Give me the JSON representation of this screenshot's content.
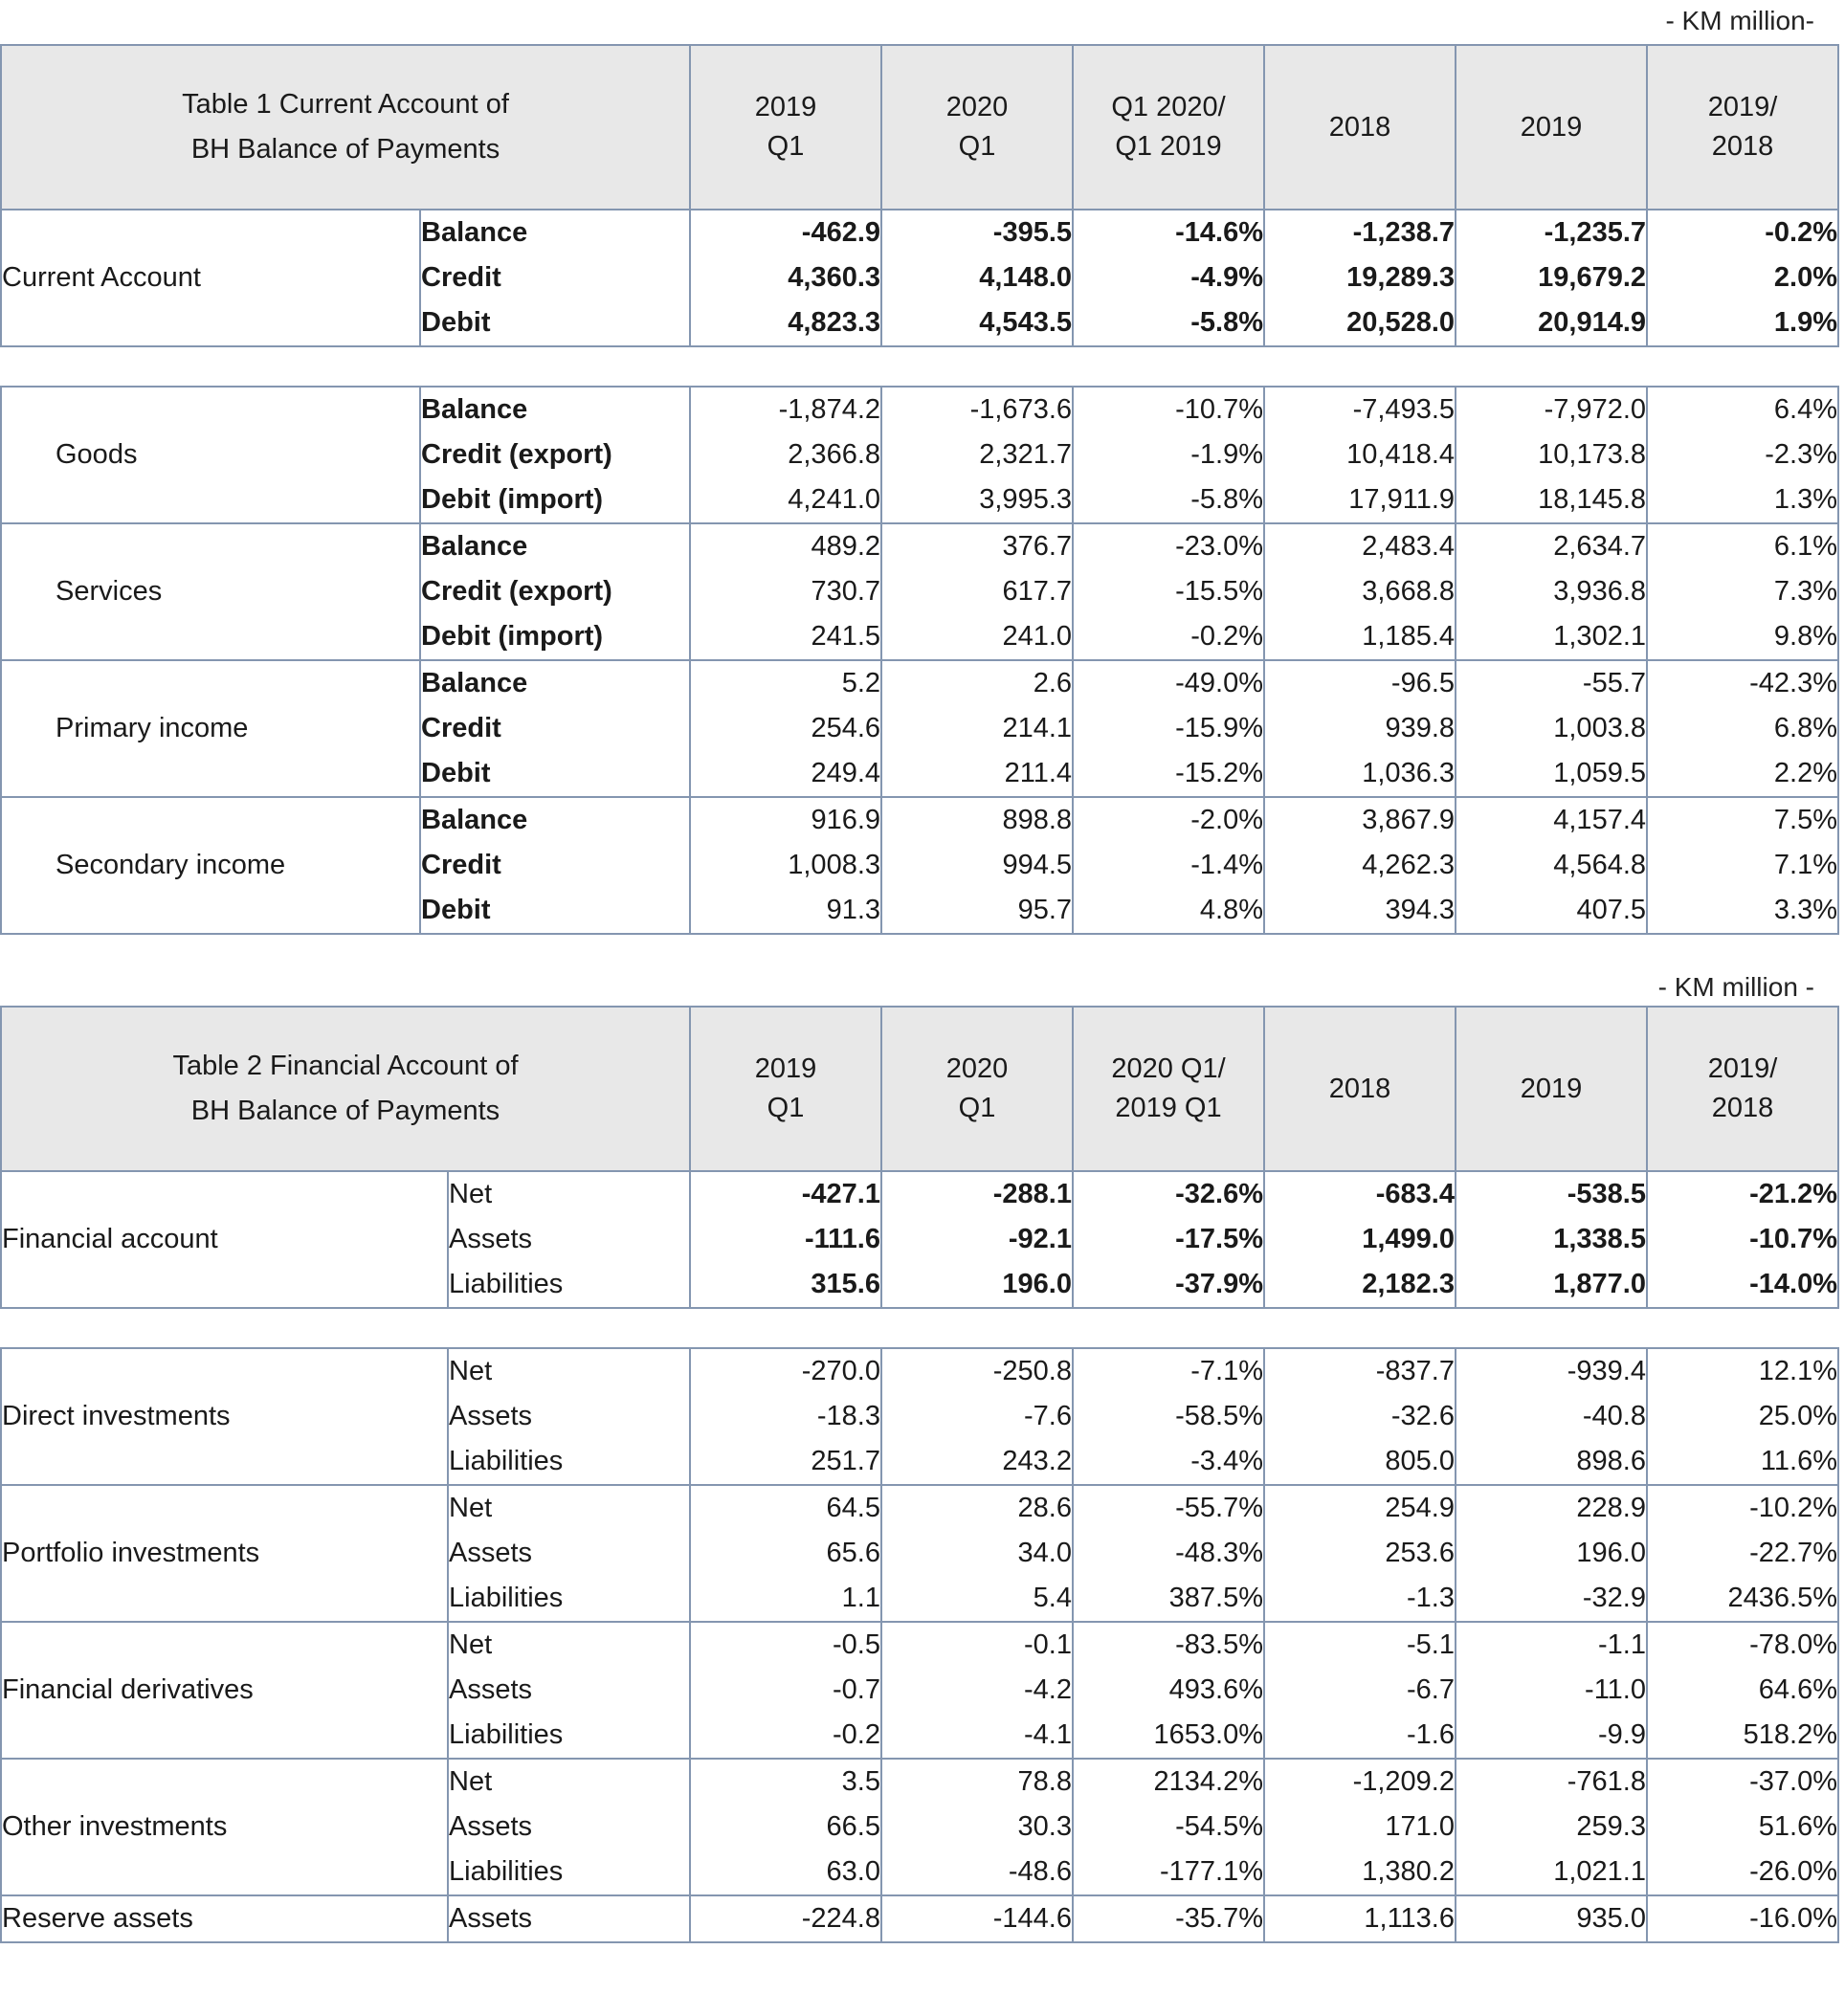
{
  "table1": {
    "unit": "- KM million-",
    "title": [
      "Table 1 Current Account of",
      "BH Balance of Payments"
    ],
    "columns": [
      [
        "2019",
        "Q1"
      ],
      [
        "2020",
        "Q1"
      ],
      [
        "Q1 2020/",
        "Q1 2019"
      ],
      [
        "2018"
      ],
      [
        "2019"
      ],
      [
        "2019/",
        "2018"
      ]
    ],
    "sections": [
      {
        "name": "Current Account",
        "rows": [
          {
            "label": "Balance",
            "values": [
              "-462.9",
              "-395.5",
              "-14.6%",
              "-1,238.7",
              "-1,235.7",
              "-0.2%"
            ]
          },
          {
            "label": "Credit",
            "values": [
              "4,360.3",
              "4,148.0",
              "-4.9%",
              "19,289.3",
              "19,679.2",
              "2.0%"
            ]
          },
          {
            "label": "Debit",
            "values": [
              "4,823.3",
              "4,543.5",
              "-5.8%",
              "20,528.0",
              "20,914.9",
              "1.9%"
            ]
          }
        ]
      },
      {
        "name": "Goods",
        "rows": [
          {
            "label": "Balance",
            "values": [
              "-1,874.2",
              "-1,673.6",
              "-10.7%",
              "-7,493.5",
              "-7,972.0",
              "6.4%"
            ]
          },
          {
            "label": "Credit (export)",
            "values": [
              "2,366.8",
              "2,321.7",
              "-1.9%",
              "10,418.4",
              "10,173.8",
              "-2.3%"
            ]
          },
          {
            "label": "Debit (import)",
            "values": [
              "4,241.0",
              "3,995.3",
              "-5.8%",
              "17,911.9",
              "18,145.8",
              "1.3%"
            ]
          }
        ]
      },
      {
        "name": "Services",
        "rows": [
          {
            "label": "Balance",
            "values": [
              "489.2",
              "376.7",
              "-23.0%",
              "2,483.4",
              "2,634.7",
              "6.1%"
            ]
          },
          {
            "label": "Credit (export)",
            "values": [
              "730.7",
              "617.7",
              "-15.5%",
              "3,668.8",
              "3,936.8",
              "7.3%"
            ]
          },
          {
            "label": "Debit (import)",
            "values": [
              "241.5",
              "241.0",
              "-0.2%",
              "1,185.4",
              "1,302.1",
              "9.8%"
            ]
          }
        ]
      },
      {
        "name": "Primary income",
        "rows": [
          {
            "label": "Balance",
            "values": [
              "5.2",
              "2.6",
              "-49.0%",
              "-96.5",
              "-55.7",
              "-42.3%"
            ]
          },
          {
            "label": "Credit",
            "values": [
              "254.6",
              "214.1",
              "-15.9%",
              "939.8",
              "1,003.8",
              "6.8%"
            ]
          },
          {
            "label": "Debit",
            "values": [
              "249.4",
              "211.4",
              "-15.2%",
              "1,036.3",
              "1,059.5",
              "2.2%"
            ]
          }
        ]
      },
      {
        "name": "Secondary income",
        "rows": [
          {
            "label": "Balance",
            "values": [
              "916.9",
              "898.8",
              "-2.0%",
              "3,867.9",
              "4,157.4",
              "7.5%"
            ]
          },
          {
            "label": "Credit",
            "values": [
              "1,008.3",
              "994.5",
              "-1.4%",
              "4,262.3",
              "4,564.8",
              "7.1%"
            ]
          },
          {
            "label": "Debit",
            "values": [
              "91.3",
              "95.7",
              "4.8%",
              "394.3",
              "407.5",
              "3.3%"
            ]
          }
        ]
      }
    ]
  },
  "table2": {
    "unit": "- KM million -",
    "title": [
      "Table 2  Financial Account of",
      "BH Balance of Payments"
    ],
    "columns": [
      [
        "2019",
        "Q1"
      ],
      [
        "2020",
        "Q1"
      ],
      [
        "2020 Q1/",
        "2019 Q1"
      ],
      [
        "2018"
      ],
      [
        "2019"
      ],
      [
        "2019/",
        "2018"
      ]
    ],
    "sections": [
      {
        "name": "Financial account",
        "rows": [
          {
            "label": "Net",
            "values": [
              "-427.1",
              "-288.1",
              "-32.6%",
              "-683.4",
              "-538.5",
              "-21.2%"
            ]
          },
          {
            "label": "Assets",
            "values": [
              "-111.6",
              "-92.1",
              "-17.5%",
              "1,499.0",
              "1,338.5",
              "-10.7%"
            ]
          },
          {
            "label": "Liabilities",
            "values": [
              "315.6",
              "196.0",
              "-37.9%",
              "2,182.3",
              "1,877.0",
              "-14.0%"
            ]
          }
        ]
      },
      {
        "name": "Direct investments",
        "rows": [
          {
            "label": "Net",
            "values": [
              "-270.0",
              "-250.8",
              "-7.1%",
              "-837.7",
              "-939.4",
              "12.1%"
            ]
          },
          {
            "label": "Assets",
            "values": [
              "-18.3",
              "-7.6",
              "-58.5%",
              "-32.6",
              "-40.8",
              "25.0%"
            ]
          },
          {
            "label": "Liabilities",
            "values": [
              "251.7",
              "243.2",
              "-3.4%",
              "805.0",
              "898.6",
              "11.6%"
            ]
          }
        ]
      },
      {
        "name": "Portfolio investments",
        "rows": [
          {
            "label": "Net",
            "values": [
              "64.5",
              "28.6",
              "-55.7%",
              "254.9",
              "228.9",
              "-10.2%"
            ]
          },
          {
            "label": "Assets",
            "values": [
              "65.6",
              "34.0",
              "-48.3%",
              "253.6",
              "196.0",
              "-22.7%"
            ]
          },
          {
            "label": "Liabilities",
            "values": [
              "1.1",
              "5.4",
              "387.5%",
              "-1.3",
              "-32.9",
              "2436.5%"
            ]
          }
        ]
      },
      {
        "name": "Financial derivatives",
        "rows": [
          {
            "label": "Net",
            "values": [
              "-0.5",
              "-0.1",
              "-83.5%",
              "-5.1",
              "-1.1",
              "-78.0%"
            ]
          },
          {
            "label": "Assets",
            "values": [
              "-0.7",
              "-4.2",
              "493.6%",
              "-6.7",
              "-11.0",
              "64.6%"
            ]
          },
          {
            "label": "Liabilities",
            "values": [
              "-0.2",
              "-4.1",
              "1653.0%",
              "-1.6",
              "-9.9",
              "518.2%"
            ]
          }
        ]
      },
      {
        "name": "Other investments",
        "rows": [
          {
            "label": "Net",
            "values": [
              "3.5",
              "78.8",
              "2134.2%",
              "-1,209.2",
              "-761.8",
              "-37.0%"
            ]
          },
          {
            "label": "Assets",
            "values": [
              "66.5",
              "30.3",
              "-54.5%",
              "171.0",
              "259.3",
              "51.6%"
            ]
          },
          {
            "label": "Liabilities",
            "values": [
              "63.0",
              "-48.6",
              "-177.1%",
              "1,380.2",
              "1,021.1",
              "-26.0%"
            ]
          }
        ]
      },
      {
        "name": "Reserve assets",
        "rows": [
          {
            "label": "Assets",
            "values": [
              "-224.8",
              "-144.6",
              "-35.7%",
              "1,113.6",
              "935.0",
              "-16.0%"
            ]
          }
        ]
      }
    ]
  }
}
